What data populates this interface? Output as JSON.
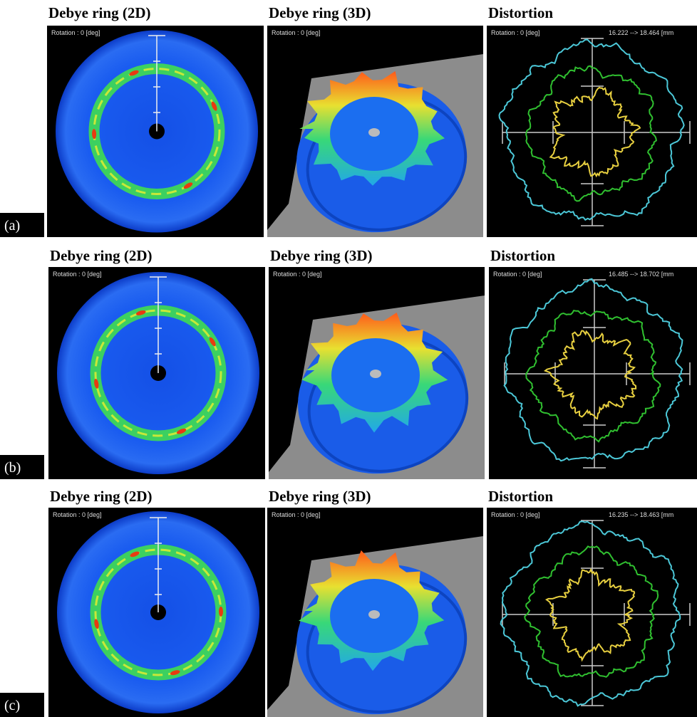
{
  "rows": [
    {
      "label": "(a)",
      "panels": [
        {
          "title": "Debye ring (2D)",
          "overlay": "Rotation : 0 [deg]"
        },
        {
          "title": "Debye ring (3D)",
          "overlay": "Rotation : 0 [deg]"
        },
        {
          "title": "Distortion",
          "overlay": "Rotation : 0 [deg]",
          "range": "16.222 --> 18.464 [mm"
        }
      ]
    },
    {
      "label": "(b)",
      "panels": [
        {
          "title": "Debye ring (2D)",
          "overlay": "Rotation : 0 [deg]"
        },
        {
          "title": "Debye ring (3D)",
          "overlay": "Rotation : 0 [deg]"
        },
        {
          "title": "Distortion",
          "overlay": "Rotation : 0 [deg]",
          "range": "16.485 --> 18.702 [mm"
        }
      ]
    },
    {
      "label": "(c)",
      "panels": [
        {
          "title": "Debye ring (2D)",
          "overlay": "Rotation : 0 [deg]"
        },
        {
          "title": "Debye ring (3D)",
          "overlay": "Rotation : 0 [deg]"
        },
        {
          "title": "Distortion",
          "overlay": "Rotation : 0 [deg]",
          "range": "16.235 --> 18.463 [mm"
        }
      ]
    }
  ]
}
